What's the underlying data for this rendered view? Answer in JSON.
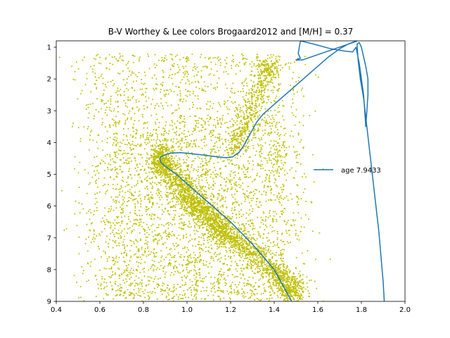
{
  "chart_data": {
    "type": "scatter",
    "title": "B-V Worthey & Lee colors Brogaard2012 and [M/H] = 0.37",
    "xlabel": "",
    "ylabel": "",
    "xlim": [
      0.4,
      2.0
    ],
    "ylim": [
      9,
      0.8
    ],
    "y_inverted": true,
    "grid": false,
    "legend_placement": "center-right",
    "x_ticks": [
      "0.4",
      "0.6",
      "0.8",
      "1.0",
      "1.2",
      "1.4",
      "1.6",
      "1.8",
      "2.0"
    ],
    "y_ticks": [
      "1",
      "2",
      "3",
      "4",
      "5",
      "6",
      "7",
      "8",
      "9"
    ],
    "scatter_series": {
      "color": "#bfbf00",
      "description": "stars",
      "main_sequence_ridge": [
        [
          0.89,
          4.6
        ],
        [
          0.95,
          5.15
        ],
        [
          1.0,
          5.6
        ],
        [
          1.05,
          6.0
        ],
        [
          1.1,
          6.35
        ],
        [
          1.15,
          6.7
        ],
        [
          1.2,
          7.0
        ],
        [
          1.3,
          7.5
        ],
        [
          1.4,
          8.0
        ],
        [
          1.45,
          8.45
        ],
        [
          1.5,
          8.85
        ]
      ],
      "red_giant_ridge": [
        [
          1.2,
          4.4
        ],
        [
          1.24,
          3.8
        ],
        [
          1.28,
          3.1
        ],
        [
          1.33,
          2.4
        ],
        [
          1.36,
          1.8
        ],
        [
          1.38,
          1.5
        ]
      ],
      "turnoff_region": [
        [
          0.85,
          4.4
        ],
        [
          0.9,
          4.8
        ],
        [
          0.87,
          4.2
        ]
      ],
      "field_spread": {
        "x": [
          0.45,
          1.95
        ],
        "y": [
          1.0,
          9.0
        ]
      }
    },
    "series": [
      {
        "name": "age 7.9433",
        "color": "#1f77b4",
        "x": [
          1.48,
          1.44,
          1.4,
          1.35,
          1.3,
          1.25,
          1.2,
          1.15,
          1.1,
          1.05,
          1.0,
          0.96,
          0.92,
          0.895,
          0.88,
          0.875,
          0.88,
          0.9,
          0.93,
          0.97,
          1.02,
          1.08,
          1.14,
          1.18,
          1.21,
          1.24,
          1.26,
          1.28,
          1.3,
          1.32,
          1.35,
          1.4,
          1.45,
          1.5,
          1.55,
          1.6,
          1.65,
          1.7,
          1.74,
          1.77,
          1.78,
          1.775,
          1.53,
          1.5,
          1.52,
          1.51,
          1.52,
          1.58,
          1.66,
          1.72,
          1.76,
          1.775,
          1.79,
          1.8,
          1.81,
          1.815,
          1.818,
          1.82,
          1.825,
          1.83,
          1.83,
          1.82,
          1.81,
          1.8,
          1.79,
          1.78,
          1.785,
          1.795,
          1.81,
          1.82,
          1.83,
          1.84,
          1.85,
          1.86,
          1.87,
          1.88,
          1.89,
          1.9,
          1.905
        ],
        "y": [
          9.0,
          8.5,
          8.0,
          7.6,
          7.2,
          6.85,
          6.5,
          6.2,
          5.9,
          5.6,
          5.3,
          5.05,
          4.85,
          4.72,
          4.62,
          4.52,
          4.45,
          4.38,
          4.33,
          4.32,
          4.35,
          4.4,
          4.45,
          4.48,
          4.45,
          4.3,
          4.1,
          3.85,
          3.6,
          3.35,
          3.1,
          2.8,
          2.5,
          2.2,
          1.9,
          1.6,
          1.3,
          1.05,
          0.9,
          0.82,
          0.8,
          0.82,
          1.4,
          1.4,
          1.35,
          1.2,
          0.8,
          0.9,
          1.05,
          1.12,
          1.15,
          1.0,
          1.5,
          2.0,
          2.5,
          3.0,
          3.3,
          3.5,
          3.0,
          2.5,
          2.0,
          1.6,
          1.3,
          1.0,
          0.85,
          0.9,
          1.4,
          2.0,
          2.6,
          3.2,
          3.8,
          4.4,
          5.0,
          5.6,
          6.2,
          6.8,
          7.6,
          8.4,
          9.0
        ]
      }
    ]
  }
}
